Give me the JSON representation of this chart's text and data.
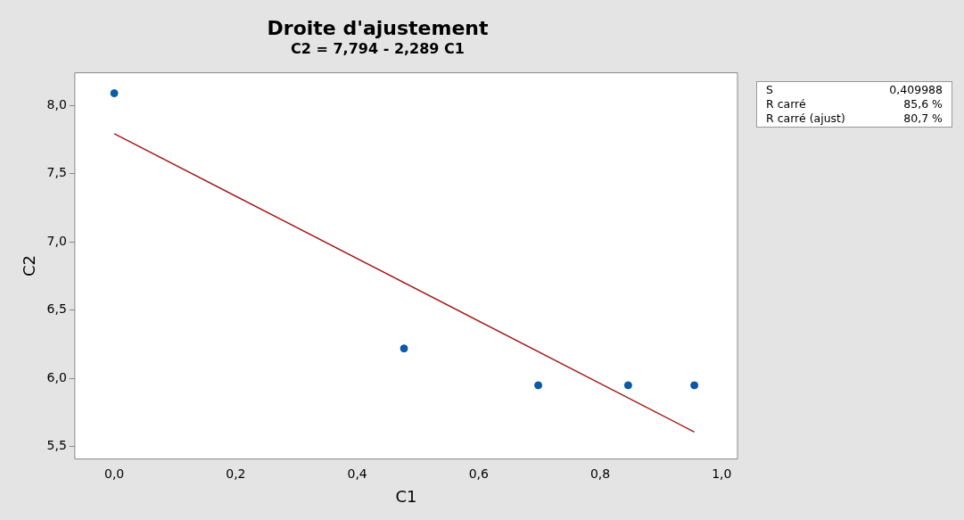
{
  "chart_data": {
    "type": "scatter",
    "title": "Droite d'ajustement",
    "subtitle": "C2 = 7,794 - 2,289 C1",
    "xlabel": "C1",
    "ylabel": "C2",
    "x": [
      0,
      0.477,
      0.698,
      0.846,
      0.955
    ],
    "series": [
      {
        "type": "scatter",
        "color": "#0b5aa6",
        "values": [
          8.09,
          6.22,
          5.95,
          5.95,
          5.95
        ],
        "marker": "circle"
      },
      {
        "type": "line",
        "color": "#a01a1a",
        "x": [
          0,
          0.955
        ],
        "values": [
          7.794,
          5.608
        ],
        "marker": "none",
        "line_style": "solid"
      }
    ],
    "xlim": [
      -0.065,
      1.026
    ],
    "ylim": [
      5.41,
      8.24
    ],
    "xticks": [
      {
        "value": 0,
        "label": "0,0"
      },
      {
        "value": 0.2,
        "label": "0,2"
      },
      {
        "value": 0.4,
        "label": "0,4"
      },
      {
        "value": 0.6,
        "label": "0,6"
      },
      {
        "value": 0.8,
        "label": "0,8"
      },
      {
        "value": 1,
        "label": "1,0"
      }
    ],
    "yticks": [
      {
        "value": 5.5,
        "label": "5,5"
      },
      {
        "value": 6,
        "label": "6,0"
      },
      {
        "value": 6.5,
        "label": "6,5"
      },
      {
        "value": 7,
        "label": "7,0"
      },
      {
        "value": 7.5,
        "label": "7,5"
      },
      {
        "value": 8,
        "label": "8,0"
      }
    ],
    "annotations": [
      "S",
      "0,409988",
      "R carré",
      "85,6 %",
      "R carré (ajust)",
      "80,7 %"
    ],
    "grid": false,
    "legend": false
  }
}
